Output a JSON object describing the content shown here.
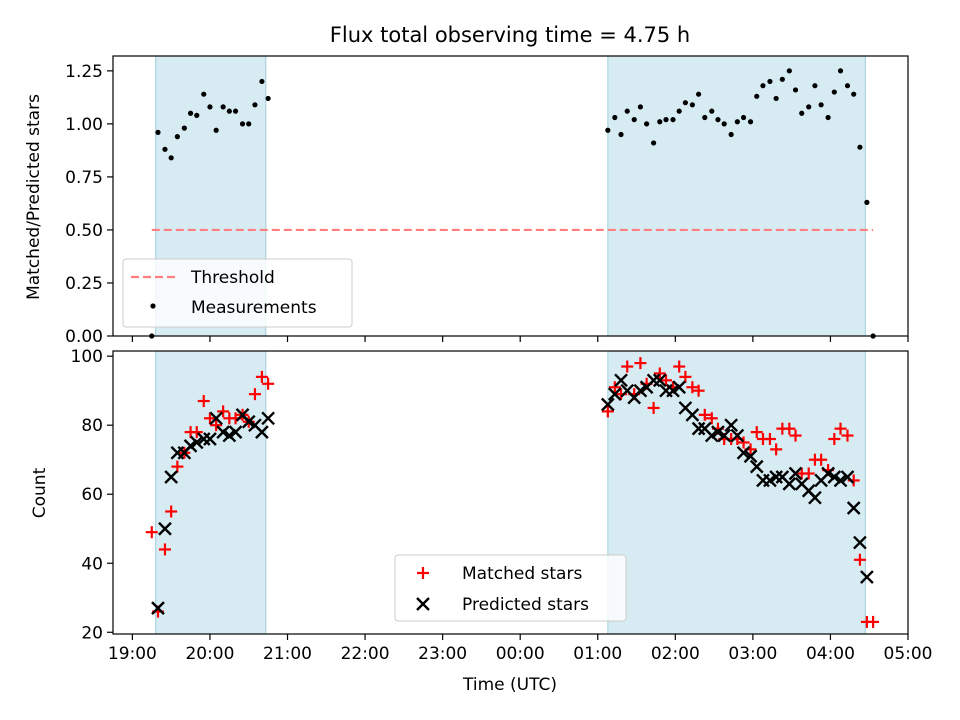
{
  "title": "Flux total observing time = 4.75 h",
  "chart_data": [
    {
      "type": "scatter",
      "ylabel": "Matched/Predicted stars",
      "xlabel": "",
      "xlim": [
        18.75,
        29.0
      ],
      "ylim": [
        0.0,
        1.32
      ],
      "yticks": [
        0.0,
        0.25,
        0.5,
        0.75,
        1.0,
        1.25
      ],
      "ytick_labels": [
        "0.00",
        "0.25",
        "0.50",
        "0.75",
        "1.00",
        "1.25"
      ],
      "grid": false,
      "legend_position": "lower-left",
      "shaded_intervals": [
        [
          19.3,
          20.72
        ],
        [
          25.13,
          28.45
        ]
      ],
      "threshold": {
        "name": "Threshold",
        "value": 0.5,
        "x_range": [
          19.25,
          28.55
        ],
        "color": "#ff7f7f"
      },
      "series": [
        {
          "name": "Measurements",
          "color": "#000000",
          "points": [
            [
              19.25,
              0.0
            ],
            [
              19.33,
              0.96
            ],
            [
              19.42,
              0.88
            ],
            [
              19.5,
              0.84
            ],
            [
              19.58,
              0.94
            ],
            [
              19.67,
              0.98
            ],
            [
              19.75,
              1.05
            ],
            [
              19.83,
              1.04
            ],
            [
              19.92,
              1.14
            ],
            [
              20.0,
              1.08
            ],
            [
              20.08,
              0.97
            ],
            [
              20.17,
              1.08
            ],
            [
              20.25,
              1.06
            ],
            [
              20.33,
              1.06
            ],
            [
              20.42,
              1.0
            ],
            [
              20.5,
              1.0
            ],
            [
              20.58,
              1.09
            ],
            [
              20.67,
              1.2
            ],
            [
              20.75,
              1.12
            ],
            [
              25.13,
              0.97
            ],
            [
              25.22,
              1.03
            ],
            [
              25.3,
              0.95
            ],
            [
              25.38,
              1.06
            ],
            [
              25.47,
              1.02
            ],
            [
              25.55,
              1.08
            ],
            [
              25.63,
              1.0
            ],
            [
              25.72,
              0.91
            ],
            [
              25.8,
              1.01
            ],
            [
              25.88,
              1.02
            ],
            [
              25.97,
              1.02
            ],
            [
              26.05,
              1.06
            ],
            [
              26.13,
              1.1
            ],
            [
              26.22,
              1.09
            ],
            [
              26.3,
              1.14
            ],
            [
              26.38,
              1.03
            ],
            [
              26.47,
              1.06
            ],
            [
              26.55,
              1.02
            ],
            [
              26.63,
              1.0
            ],
            [
              26.72,
              0.95
            ],
            [
              26.8,
              1.01
            ],
            [
              26.88,
              1.03
            ],
            [
              26.97,
              1.01
            ],
            [
              27.05,
              1.13
            ],
            [
              27.13,
              1.18
            ],
            [
              27.22,
              1.2
            ],
            [
              27.3,
              1.12
            ],
            [
              27.38,
              1.21
            ],
            [
              27.47,
              1.25
            ],
            [
              27.55,
              1.16
            ],
            [
              27.63,
              1.05
            ],
            [
              27.72,
              1.08
            ],
            [
              27.8,
              1.18
            ],
            [
              27.88,
              1.09
            ],
            [
              27.97,
              1.03
            ],
            [
              28.05,
              1.15
            ],
            [
              28.13,
              1.25
            ],
            [
              28.22,
              1.18
            ],
            [
              28.3,
              1.14
            ],
            [
              28.38,
              0.89
            ],
            [
              28.47,
              0.63
            ],
            [
              28.55,
              0.0
            ]
          ]
        }
      ]
    },
    {
      "type": "scatter",
      "ylabel": "Count",
      "xlabel": "Time (UTC)",
      "xlim": [
        18.75,
        29.0
      ],
      "ylim": [
        19.5,
        101.5
      ],
      "yticks": [
        20,
        40,
        60,
        80,
        100
      ],
      "ytick_labels": [
        "20",
        "40",
        "60",
        "80",
        "100"
      ],
      "xticks": [
        19,
        20,
        21,
        22,
        23,
        24,
        25,
        26,
        27,
        28,
        29
      ],
      "xtick_labels": [
        "19:00",
        "20:00",
        "21:00",
        "22:00",
        "23:00",
        "00:00",
        "01:00",
        "02:00",
        "03:00",
        "04:00",
        "05:00"
      ],
      "grid": false,
      "legend_position": "lower-center",
      "shaded_intervals": [
        [
          19.3,
          20.72
        ],
        [
          25.13,
          28.45
        ]
      ],
      "series": [
        {
          "name": "Matched stars",
          "marker": "plus",
          "color": "#ff0000",
          "points": [
            [
              19.25,
              49
            ],
            [
              19.33,
              26
            ],
            [
              19.42,
              44
            ],
            [
              19.5,
              55
            ],
            [
              19.58,
              68
            ],
            [
              19.67,
              72
            ],
            [
              19.75,
              78
            ],
            [
              19.83,
              78
            ],
            [
              19.92,
              87
            ],
            [
              20.0,
              82
            ],
            [
              20.08,
              80
            ],
            [
              20.17,
              84
            ],
            [
              20.25,
              82
            ],
            [
              20.33,
              82
            ],
            [
              20.42,
              83
            ],
            [
              20.5,
              81
            ],
            [
              20.58,
              89
            ],
            [
              20.67,
              94
            ],
            [
              20.75,
              92
            ],
            [
              25.13,
              84
            ],
            [
              25.22,
              91
            ],
            [
              25.3,
              89
            ],
            [
              25.38,
              97
            ],
            [
              25.47,
              89
            ],
            [
              25.55,
              98
            ],
            [
              25.63,
              92
            ],
            [
              25.72,
              85
            ],
            [
              25.8,
              95
            ],
            [
              25.88,
              93
            ],
            [
              25.97,
              91
            ],
            [
              26.05,
              97
            ],
            [
              26.13,
              94
            ],
            [
              26.22,
              91
            ],
            [
              26.3,
              90
            ],
            [
              26.38,
              83
            ],
            [
              26.47,
              82
            ],
            [
              26.55,
              79
            ],
            [
              26.63,
              76
            ],
            [
              26.72,
              76
            ],
            [
              26.8,
              76
            ],
            [
              26.88,
              75
            ],
            [
              26.97,
              73
            ],
            [
              27.05,
              78
            ],
            [
              27.13,
              76
            ],
            [
              27.22,
              76
            ],
            [
              27.3,
              73
            ],
            [
              27.38,
              79
            ],
            [
              27.47,
              79
            ],
            [
              27.55,
              77
            ],
            [
              27.63,
              66
            ],
            [
              27.72,
              66
            ],
            [
              27.8,
              70
            ],
            [
              27.88,
              70
            ],
            [
              27.97,
              67
            ],
            [
              28.05,
              76
            ],
            [
              28.13,
              79
            ],
            [
              28.22,
              77
            ],
            [
              28.3,
              64
            ],
            [
              28.38,
              41
            ],
            [
              28.47,
              23
            ],
            [
              28.55,
              23
            ]
          ]
        },
        {
          "name": "Predicted stars",
          "marker": "x",
          "color": "#000000",
          "points": [
            [
              19.33,
              27
            ],
            [
              19.42,
              50
            ],
            [
              19.5,
              65
            ],
            [
              19.58,
              72
            ],
            [
              19.67,
              72
            ],
            [
              19.75,
              74
            ],
            [
              19.83,
              75
            ],
            [
              19.92,
              76
            ],
            [
              20.0,
              76
            ],
            [
              20.08,
              82
            ],
            [
              20.17,
              78
            ],
            [
              20.25,
              77
            ],
            [
              20.33,
              78
            ],
            [
              20.42,
              83
            ],
            [
              20.5,
              81
            ],
            [
              20.58,
              80
            ],
            [
              20.67,
              78
            ],
            [
              20.75,
              82
            ],
            [
              25.13,
              86
            ],
            [
              25.22,
              89
            ],
            [
              25.3,
              93
            ],
            [
              25.38,
              90
            ],
            [
              25.47,
              88
            ],
            [
              25.55,
              90
            ],
            [
              25.63,
              91
            ],
            [
              25.72,
              93
            ],
            [
              25.8,
              93
            ],
            [
              25.88,
              90
            ],
            [
              25.97,
              90
            ],
            [
              26.05,
              91
            ],
            [
              26.13,
              85
            ],
            [
              26.22,
              83
            ],
            [
              26.3,
              79
            ],
            [
              26.38,
              79
            ],
            [
              26.47,
              77
            ],
            [
              26.55,
              78
            ],
            [
              26.63,
              77
            ],
            [
              26.72,
              80
            ],
            [
              26.8,
              77
            ],
            [
              26.88,
              72
            ],
            [
              26.97,
              71
            ],
            [
              27.05,
              68
            ],
            [
              27.13,
              64
            ],
            [
              27.22,
              64
            ],
            [
              27.3,
              65
            ],
            [
              27.38,
              65
            ],
            [
              27.47,
              63
            ],
            [
              27.55,
              66
            ],
            [
              27.63,
              63
            ],
            [
              27.72,
              61
            ],
            [
              27.8,
              59
            ],
            [
              27.88,
              64
            ],
            [
              27.97,
              66
            ],
            [
              28.05,
              65
            ],
            [
              28.13,
              64
            ],
            [
              28.22,
              65
            ],
            [
              28.3,
              56
            ],
            [
              28.38,
              46
            ],
            [
              28.47,
              36
            ]
          ]
        }
      ]
    }
  ]
}
